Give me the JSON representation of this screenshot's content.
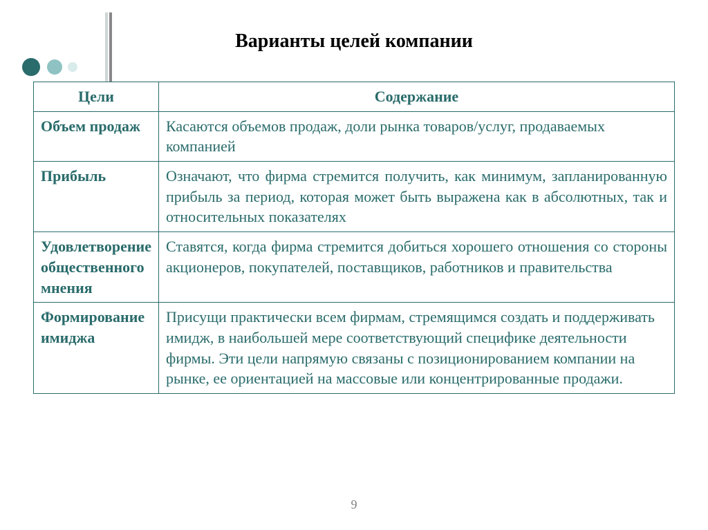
{
  "title": "Варианты целей компании",
  "page_number": "9",
  "colors": {
    "text": "#2a6b6b",
    "border": "#2a6b6b",
    "dot_dark": "#2a6b6b",
    "dot_mid": "#8fc3c3",
    "dot_light": "#d9ebeb",
    "line_light": "#cfd6d6",
    "line_dark": "#888888"
  },
  "table": {
    "headers": {
      "col1": "Цели",
      "col2": "Содержание"
    },
    "rows": [
      {
        "goal": "Объем продаж",
        "content": "Касаются объемов продаж, доли рынка товаров/услуг, продаваемых компанией",
        "justify": false
      },
      {
        "goal": "Прибыль",
        "content": "Означают, что фирма стремится получить, как минимум, запланированную прибыль за период, которая может быть выражена как в абсолютных, так и относительных показателях",
        "justify": true
      },
      {
        "goal": "Удовлетворение общественного мнения",
        "content": "Ставятся, когда фирма стремится добиться хорошего отношения со стороны акционеров, покупателей, поставщиков, работников и правительства",
        "justify": true
      },
      {
        "goal": "Формирование имиджа",
        "content": "Присущи практически всем фирмам, стремящимся создать и поддерживать имидж, в наибольшей мере соответствующий специфике деятельности фирмы. Эти цели напрямую связаны с позиционированием компании на рынке, ее ориентацией на массовые или концентрированные продажи.",
        "justify": false
      }
    ]
  }
}
